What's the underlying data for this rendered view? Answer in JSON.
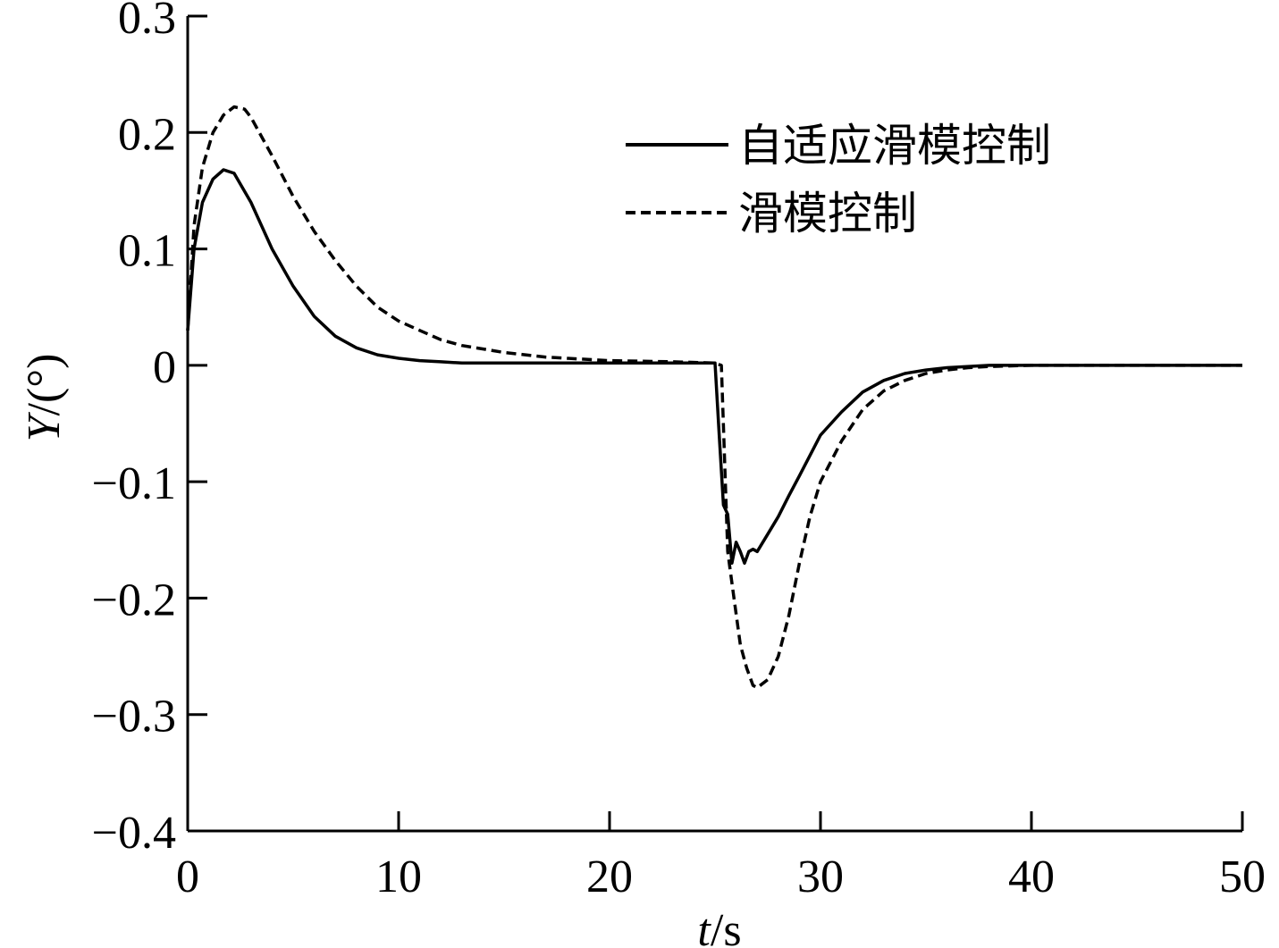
{
  "chart_data": {
    "type": "line",
    "title": "",
    "xlabel": {
      "italic": "t",
      "rest": "/s"
    },
    "ylabel": {
      "italic": "Y",
      "rest": "/(°)"
    },
    "xlim": [
      0,
      50
    ],
    "ylim": [
      -0.4,
      0.3
    ],
    "xticks": [
      0,
      10,
      20,
      30,
      40,
      50
    ],
    "xtick_labels": [
      "0",
      "10",
      "20",
      "30",
      "40",
      "50"
    ],
    "yticks": [
      0.3,
      0.2,
      0.1,
      0,
      -0.1,
      -0.2,
      -0.3,
      -0.4
    ],
    "ytick_labels": [
      "0.3",
      "0.2",
      "0.1",
      "0",
      "−0.1",
      "−0.2",
      "−0.3",
      "−0.4"
    ],
    "grid": false,
    "legend_position": "top-right",
    "series": [
      {
        "name": "自适应滑模控制",
        "style": "solid",
        "color": "#000000",
        "x": [
          0,
          0.3,
          0.7,
          1.2,
          1.7,
          2.2,
          3,
          4,
          5,
          6,
          7,
          8,
          9,
          10,
          11,
          12,
          13,
          15,
          20,
          25,
          25.2,
          25.4,
          25.6,
          25.8,
          26,
          26.2,
          26.4,
          26.6,
          26.8,
          27,
          27.5,
          28,
          28.5,
          29,
          30,
          31,
          32,
          33,
          34,
          35,
          36,
          38,
          40,
          45,
          50
        ],
        "y": [
          0.03,
          0.1,
          0.14,
          0.16,
          0.168,
          0.165,
          0.14,
          0.1,
          0.068,
          0.042,
          0.025,
          0.015,
          0.009,
          0.006,
          0.004,
          0.003,
          0.002,
          0.002,
          0.002,
          0.002,
          -0.06,
          -0.12,
          -0.128,
          -0.17,
          -0.152,
          -0.16,
          -0.17,
          -0.16,
          -0.158,
          -0.16,
          -0.145,
          -0.13,
          -0.112,
          -0.095,
          -0.06,
          -0.04,
          -0.023,
          -0.013,
          -0.007,
          -0.004,
          -0.002,
          0,
          0,
          0,
          0
        ]
      },
      {
        "name": "滑模控制",
        "style": "dashed",
        "color": "#000000",
        "x": [
          0,
          0.3,
          0.7,
          1.2,
          1.7,
          2.2,
          2.7,
          3,
          4,
          5,
          6,
          7,
          8,
          9,
          10,
          11,
          12,
          13,
          15,
          17,
          20,
          23,
          25,
          25.3,
          25.6,
          25.9,
          26.2,
          26.5,
          26.8,
          27,
          27.5,
          28,
          28.5,
          29,
          29.5,
          30,
          31,
          32,
          33,
          34,
          35,
          36,
          37,
          38,
          40,
          45,
          50
        ],
        "y": [
          0.03,
          0.12,
          0.17,
          0.2,
          0.215,
          0.222,
          0.22,
          0.213,
          0.18,
          0.145,
          0.115,
          0.09,
          0.068,
          0.05,
          0.038,
          0.03,
          0.022,
          0.017,
          0.011,
          0.007,
          0.004,
          0.003,
          0.002,
          0,
          -0.16,
          -0.2,
          -0.24,
          -0.26,
          -0.275,
          -0.277,
          -0.27,
          -0.25,
          -0.215,
          -0.17,
          -0.13,
          -0.1,
          -0.065,
          -0.038,
          -0.022,
          -0.013,
          -0.007,
          -0.004,
          -0.002,
          -0.001,
          0,
          0,
          0
        ]
      }
    ]
  }
}
